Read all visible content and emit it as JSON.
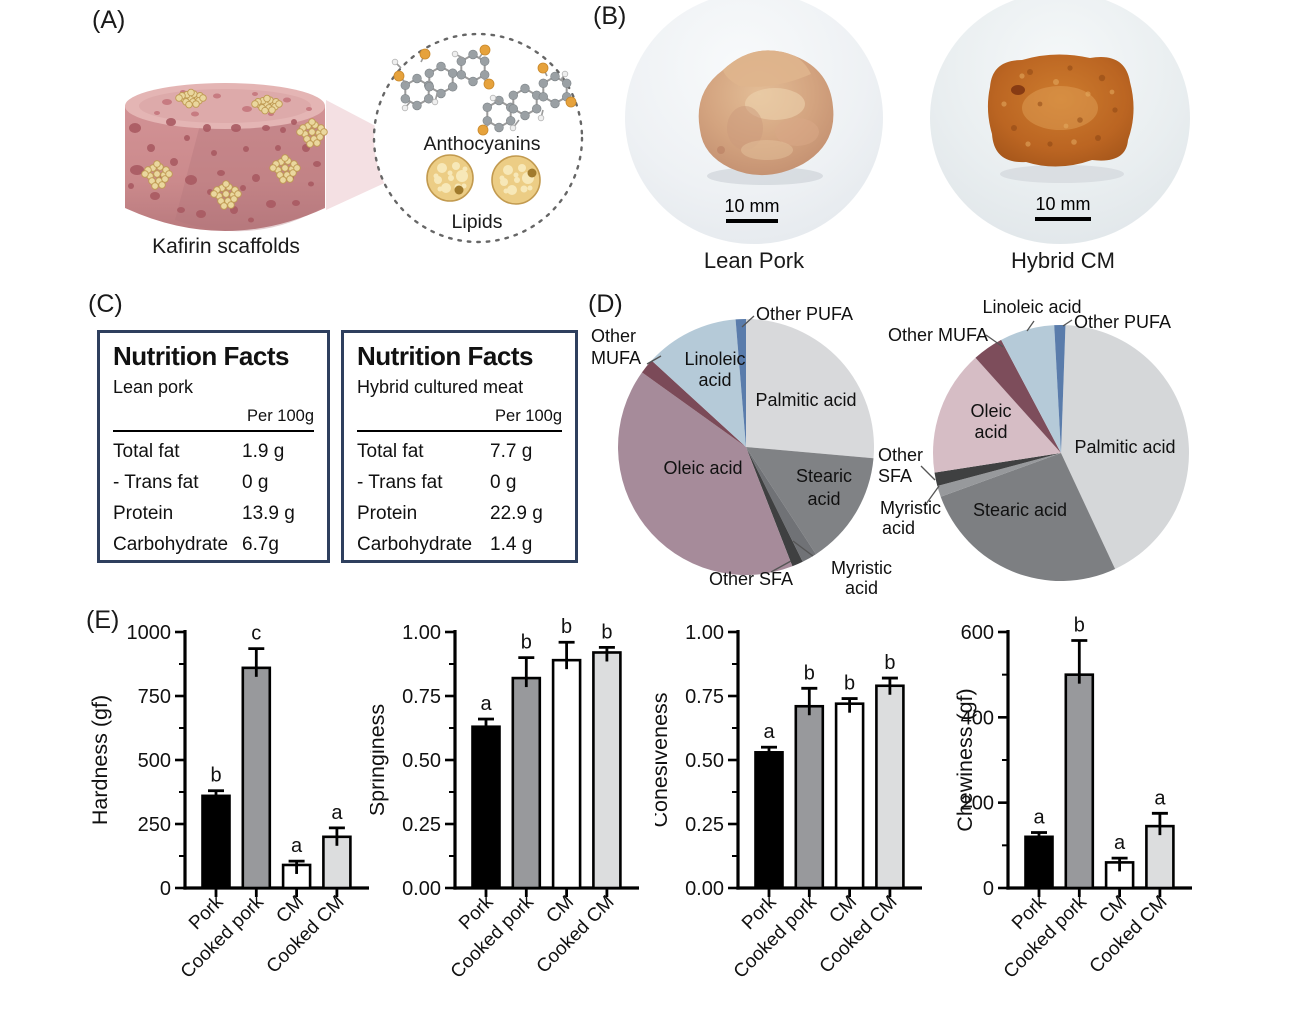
{
  "panels": {
    "A": {
      "label": "(A)",
      "caption": "Kafirin scaffolds",
      "inset": {
        "anthocyanins_label": "Anthocyanins",
        "lipids_label": "Lipids"
      }
    },
    "B": {
      "label": "(B)",
      "photos": [
        {
          "caption": "Lean Pork",
          "scale_bar": "10 mm"
        },
        {
          "caption": "Hybrid CM",
          "scale_bar": "10 mm"
        }
      ]
    },
    "C": {
      "label": "(C)",
      "box_border_color": "#2e3f5e",
      "tables": [
        {
          "title": "Nutrition Facts",
          "subtitle": "Lean pork",
          "column_header": "Per 100g",
          "rows": [
            {
              "name": "Total fat",
              "value": "1.9 g"
            },
            {
              "name": "- Trans fat",
              "value": "0 g"
            },
            {
              "name": "Protein",
              "value": "13.9 g"
            },
            {
              "name": "Carbohydrate",
              "value": "6.7g"
            }
          ]
        },
        {
          "title": "Nutrition Facts",
          "subtitle": "Hybrid cultured meat",
          "column_header": "Per 100g",
          "rows": [
            {
              "name": "Total fat",
              "value": "7.7 g"
            },
            {
              "name": "- Trans fat",
              "value": "0 g"
            },
            {
              "name": "Protein",
              "value": "22.9 g"
            },
            {
              "name": "Carbohydrate",
              "value": "1.4 g"
            }
          ]
        }
      ]
    },
    "D": {
      "label": "(D)"
    },
    "E": {
      "label": "(E)"
    }
  },
  "chart_data": [
    {
      "type": "pie",
      "name": "fatty-acid-composition-left",
      "unit": "percent",
      "start_angle": 0,
      "legend_position": "labels-on-chart",
      "slices": [
        {
          "label": "Palmitic acid",
          "value": 26.4,
          "color": "#d8d9db"
        },
        {
          "label": "Stearic acid",
          "value": 14.4,
          "color": "#808285"
        },
        {
          "label": "Myristic acid",
          "value": 1.9,
          "color": "#707276"
        },
        {
          "label": "Other SFA",
          "value": 1.4,
          "color": "#3f4041"
        },
        {
          "label": "Oleic acid",
          "value": 40.8,
          "color": "#a68b9a"
        },
        {
          "label": "Other MUFA",
          "value": 1.9,
          "color": "#7b4a58"
        },
        {
          "label": "Linoleic acid",
          "value": 11.9,
          "color": "#b5cad8"
        },
        {
          "label": "Other PUFA",
          "value": 1.3,
          "color": "#5a7cab"
        }
      ]
    },
    {
      "type": "pie",
      "name": "fatty-acid-composition-right",
      "unit": "percent",
      "start_angle": 2,
      "legend_position": "labels-on-chart",
      "slices": [
        {
          "label": "Palmitic acid",
          "value": 42.5,
          "color": "#d5d7d9"
        },
        {
          "label": "Stearic acid",
          "value": 26.4,
          "color": "#7d7f82"
        },
        {
          "label": "Myristic acid",
          "value": 1.4,
          "color": "#97999c"
        },
        {
          "label": "Other SFA",
          "value": 1.7,
          "color": "#3f4041"
        },
        {
          "label": "Oleic acid",
          "value": 15.8,
          "color": "#d6bdc5"
        },
        {
          "label": "Other MUFA",
          "value": 3.9,
          "color": "#7d4d5b"
        },
        {
          "label": "Linoleic acid",
          "value": 6.9,
          "color": "#b5cad8"
        },
        {
          "label": "Other PUFA",
          "value": 1.4,
          "color": "#5a7cab"
        }
      ]
    },
    {
      "type": "bar",
      "name": "hardness",
      "ylabel": "Hardness (gf)",
      "ylim": [
        0,
        1000
      ],
      "yticks": [
        0,
        250,
        500,
        750,
        1000
      ],
      "ytick_labels": [
        "0",
        "250",
        "500",
        "750",
        "1000"
      ],
      "minor_step": 125,
      "grid": false,
      "categories": [
        "Pork",
        "Cooked pork",
        "CM",
        "Cooked CM"
      ],
      "values": [
        360,
        860,
        90,
        200
      ],
      "errors": [
        20,
        75,
        15,
        35
      ],
      "sig_letters": [
        "b",
        "c",
        "a",
        "a"
      ],
      "bar_colors": [
        "#000000",
        "#98999c",
        "#ffffff",
        "#dcddde"
      ]
    },
    {
      "type": "bar",
      "name": "springiness",
      "ylabel": "Springiness",
      "ylim": [
        0,
        1
      ],
      "yticks": [
        0,
        0.25,
        0.5,
        0.75,
        1
      ],
      "ytick_labels": [
        "0.00",
        "0.25",
        "0.50",
        "0.75",
        "1.00"
      ],
      "minor_step": 0.125,
      "grid": false,
      "categories": [
        "Pork",
        "Cooked pork",
        "CM",
        "Cooked CM"
      ],
      "values": [
        0.63,
        0.82,
        0.89,
        0.92
      ],
      "errors": [
        0.03,
        0.08,
        0.07,
        0.02
      ],
      "sig_letters": [
        "a",
        "b",
        "b",
        "b"
      ],
      "bar_colors": [
        "#000000",
        "#98999c",
        "#ffffff",
        "#dcddde"
      ]
    },
    {
      "type": "bar",
      "name": "cohesiveness",
      "ylabel": "Cohesiveness",
      "ylim": [
        0,
        1
      ],
      "yticks": [
        0,
        0.25,
        0.5,
        0.75,
        1
      ],
      "ytick_labels": [
        "0.00",
        "0.25",
        "0.50",
        "0.75",
        "1.00"
      ],
      "minor_step": 0.125,
      "grid": false,
      "categories": [
        "Pork",
        "Cooked pork",
        "CM",
        "Cooked CM"
      ],
      "values": [
        0.53,
        0.71,
        0.72,
        0.79
      ],
      "errors": [
        0.02,
        0.07,
        0.02,
        0.03
      ],
      "sig_letters": [
        "a",
        "b",
        "b",
        "b"
      ],
      "bar_colors": [
        "#000000",
        "#98999c",
        "#ffffff",
        "#dcddde"
      ]
    },
    {
      "type": "bar",
      "name": "chewiness",
      "ylabel": "Chewiness (gf)",
      "ylim": [
        0,
        600
      ],
      "yticks": [
        0,
        200,
        400,
        600
      ],
      "ytick_labels": [
        "0",
        "200",
        "400",
        "600"
      ],
      "minor_step": 100,
      "grid": false,
      "categories": [
        "Pork",
        "Cooked pork",
        "CM",
        "Cooked CM"
      ],
      "values": [
        120,
        500,
        60,
        145
      ],
      "errors": [
        10,
        80,
        10,
        30
      ],
      "sig_letters": [
        "a",
        "b",
        "a",
        "a"
      ],
      "bar_colors": [
        "#000000",
        "#98999c",
        "#ffffff",
        "#dcddde"
      ]
    }
  ]
}
